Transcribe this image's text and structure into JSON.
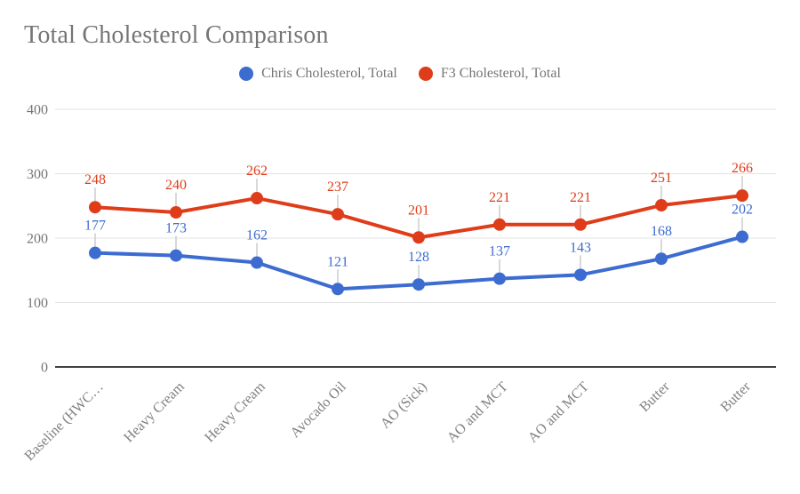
{
  "chart": {
    "title": "Total Cholesterol Comparison"
  },
  "chart_data": {
    "type": "line",
    "title": "Total Cholesterol Comparison",
    "categories": [
      "Baseline (HWC…",
      "Heavy Cream",
      "Heavy Cream",
      "Avocado Oil",
      "AO (Sick)",
      "AO and MCT",
      "AO and MCT",
      "Butter",
      "Butter"
    ],
    "series": [
      {
        "name": "Chris Cholesterol, Total",
        "color": "#3d6cd1",
        "values": [
          177,
          173,
          162,
          121,
          128,
          137,
          143,
          168,
          202
        ]
      },
      {
        "name": "F3 Cholesterol, Total",
        "color": "#df3c1a",
        "values": [
          248,
          240,
          262,
          237,
          201,
          221,
          221,
          251,
          266
        ]
      }
    ],
    "y_axis": {
      "min": 0,
      "max": 400,
      "ticks": [
        0,
        100,
        200,
        300,
        400
      ]
    },
    "xlabel": "",
    "ylabel": "",
    "x_label_rotation_deg": -45,
    "legend_position": "top-center",
    "grid": true,
    "point_annotations": true,
    "colors": {
      "title_text": "#757575",
      "axis_text": "#808080",
      "y_tick_text": "#757575",
      "gridline": "#e3e3e3",
      "baseline": "#424242",
      "annotation_stem": "#cccccc",
      "background": "#ffffff"
    }
  }
}
